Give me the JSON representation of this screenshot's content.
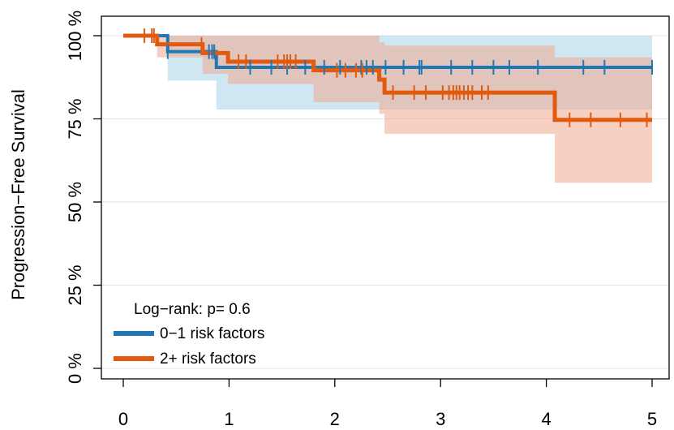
{
  "chart_data": {
    "type": "line",
    "subtype": "kaplan-meier step curves with confidence bands",
    "ylabel": "Progression−Free Survival",
    "xlabel": "",
    "xlim": [
      0,
      5
    ],
    "ylim": [
      0,
      100
    ],
    "x_ticks": [
      "0",
      "1",
      "2",
      "3",
      "4",
      "5"
    ],
    "y_ticks": [
      "0 %",
      "25 %",
      "50 %",
      "75 %",
      "100 %"
    ],
    "grid": true,
    "legend_position": "bottom-left",
    "annotation": "Log−rank: p= 0.6",
    "series": [
      {
        "name": "0−1 risk factors",
        "color": "#1f77b4",
        "band_color": "#a6d3ea",
        "steps": [
          [
            0,
            100
          ],
          [
            0.42,
            95.2
          ],
          [
            0.88,
            90.5
          ],
          [
            5.0,
            90.5
          ]
        ],
        "ci_upper": [
          [
            0,
            100
          ],
          [
            0.42,
            100
          ],
          [
            0.88,
            100
          ],
          [
            5.0,
            100
          ]
        ],
        "ci_lower": [
          [
            0,
            100
          ],
          [
            0.42,
            86.5
          ],
          [
            0.88,
            77.8
          ],
          [
            5.0,
            77.8
          ]
        ],
        "censor_x": [
          0.42,
          0.81,
          0.84,
          0.86,
          1.2,
          1.4,
          1.55,
          1.72,
          1.9,
          2.05,
          2.25,
          2.3,
          2.36,
          2.48,
          2.65,
          2.8,
          2.82,
          3.1,
          3.3,
          3.5,
          3.65,
          3.92,
          4.35,
          4.55,
          5.0
        ]
      },
      {
        "name": "2+ risk factors",
        "color": "#e05a10",
        "band_color": "#f1a98f",
        "steps": [
          [
            0,
            100
          ],
          [
            0.32,
            97.4
          ],
          [
            0.75,
            94.8
          ],
          [
            0.99,
            92.2
          ],
          [
            1.8,
            89.6
          ],
          [
            2.42,
            86.8
          ],
          [
            2.47,
            82.9
          ],
          [
            4.08,
            74.7
          ],
          [
            5.0,
            74.7
          ]
        ],
        "ci_upper": [
          [
            0,
            100
          ],
          [
            0.32,
            100
          ],
          [
            0.75,
            100
          ],
          [
            0.99,
            100
          ],
          [
            1.8,
            100
          ],
          [
            2.42,
            98
          ],
          [
            2.47,
            97
          ],
          [
            4.08,
            93.5
          ],
          [
            5.0,
            93.5
          ]
        ],
        "ci_lower": [
          [
            0,
            100
          ],
          [
            0.32,
            93.5
          ],
          [
            0.75,
            88.5
          ],
          [
            0.99,
            85.5
          ],
          [
            1.8,
            80.0
          ],
          [
            2.42,
            76.5
          ],
          [
            2.47,
            70.5
          ],
          [
            4.08,
            55.8
          ],
          [
            5.0,
            55.8
          ]
        ],
        "censor_x": [
          0.2,
          0.27,
          0.29,
          0.74,
          1.09,
          1.16,
          1.46,
          1.52,
          1.55,
          1.58,
          1.63,
          2.02,
          2.1,
          2.2,
          2.26,
          2.55,
          2.75,
          2.86,
          3.02,
          3.08,
          3.12,
          3.15,
          3.18,
          3.22,
          3.26,
          3.3,
          3.39,
          3.45,
          4.22,
          4.42,
          4.7,
          4.95
        ]
      }
    ]
  }
}
